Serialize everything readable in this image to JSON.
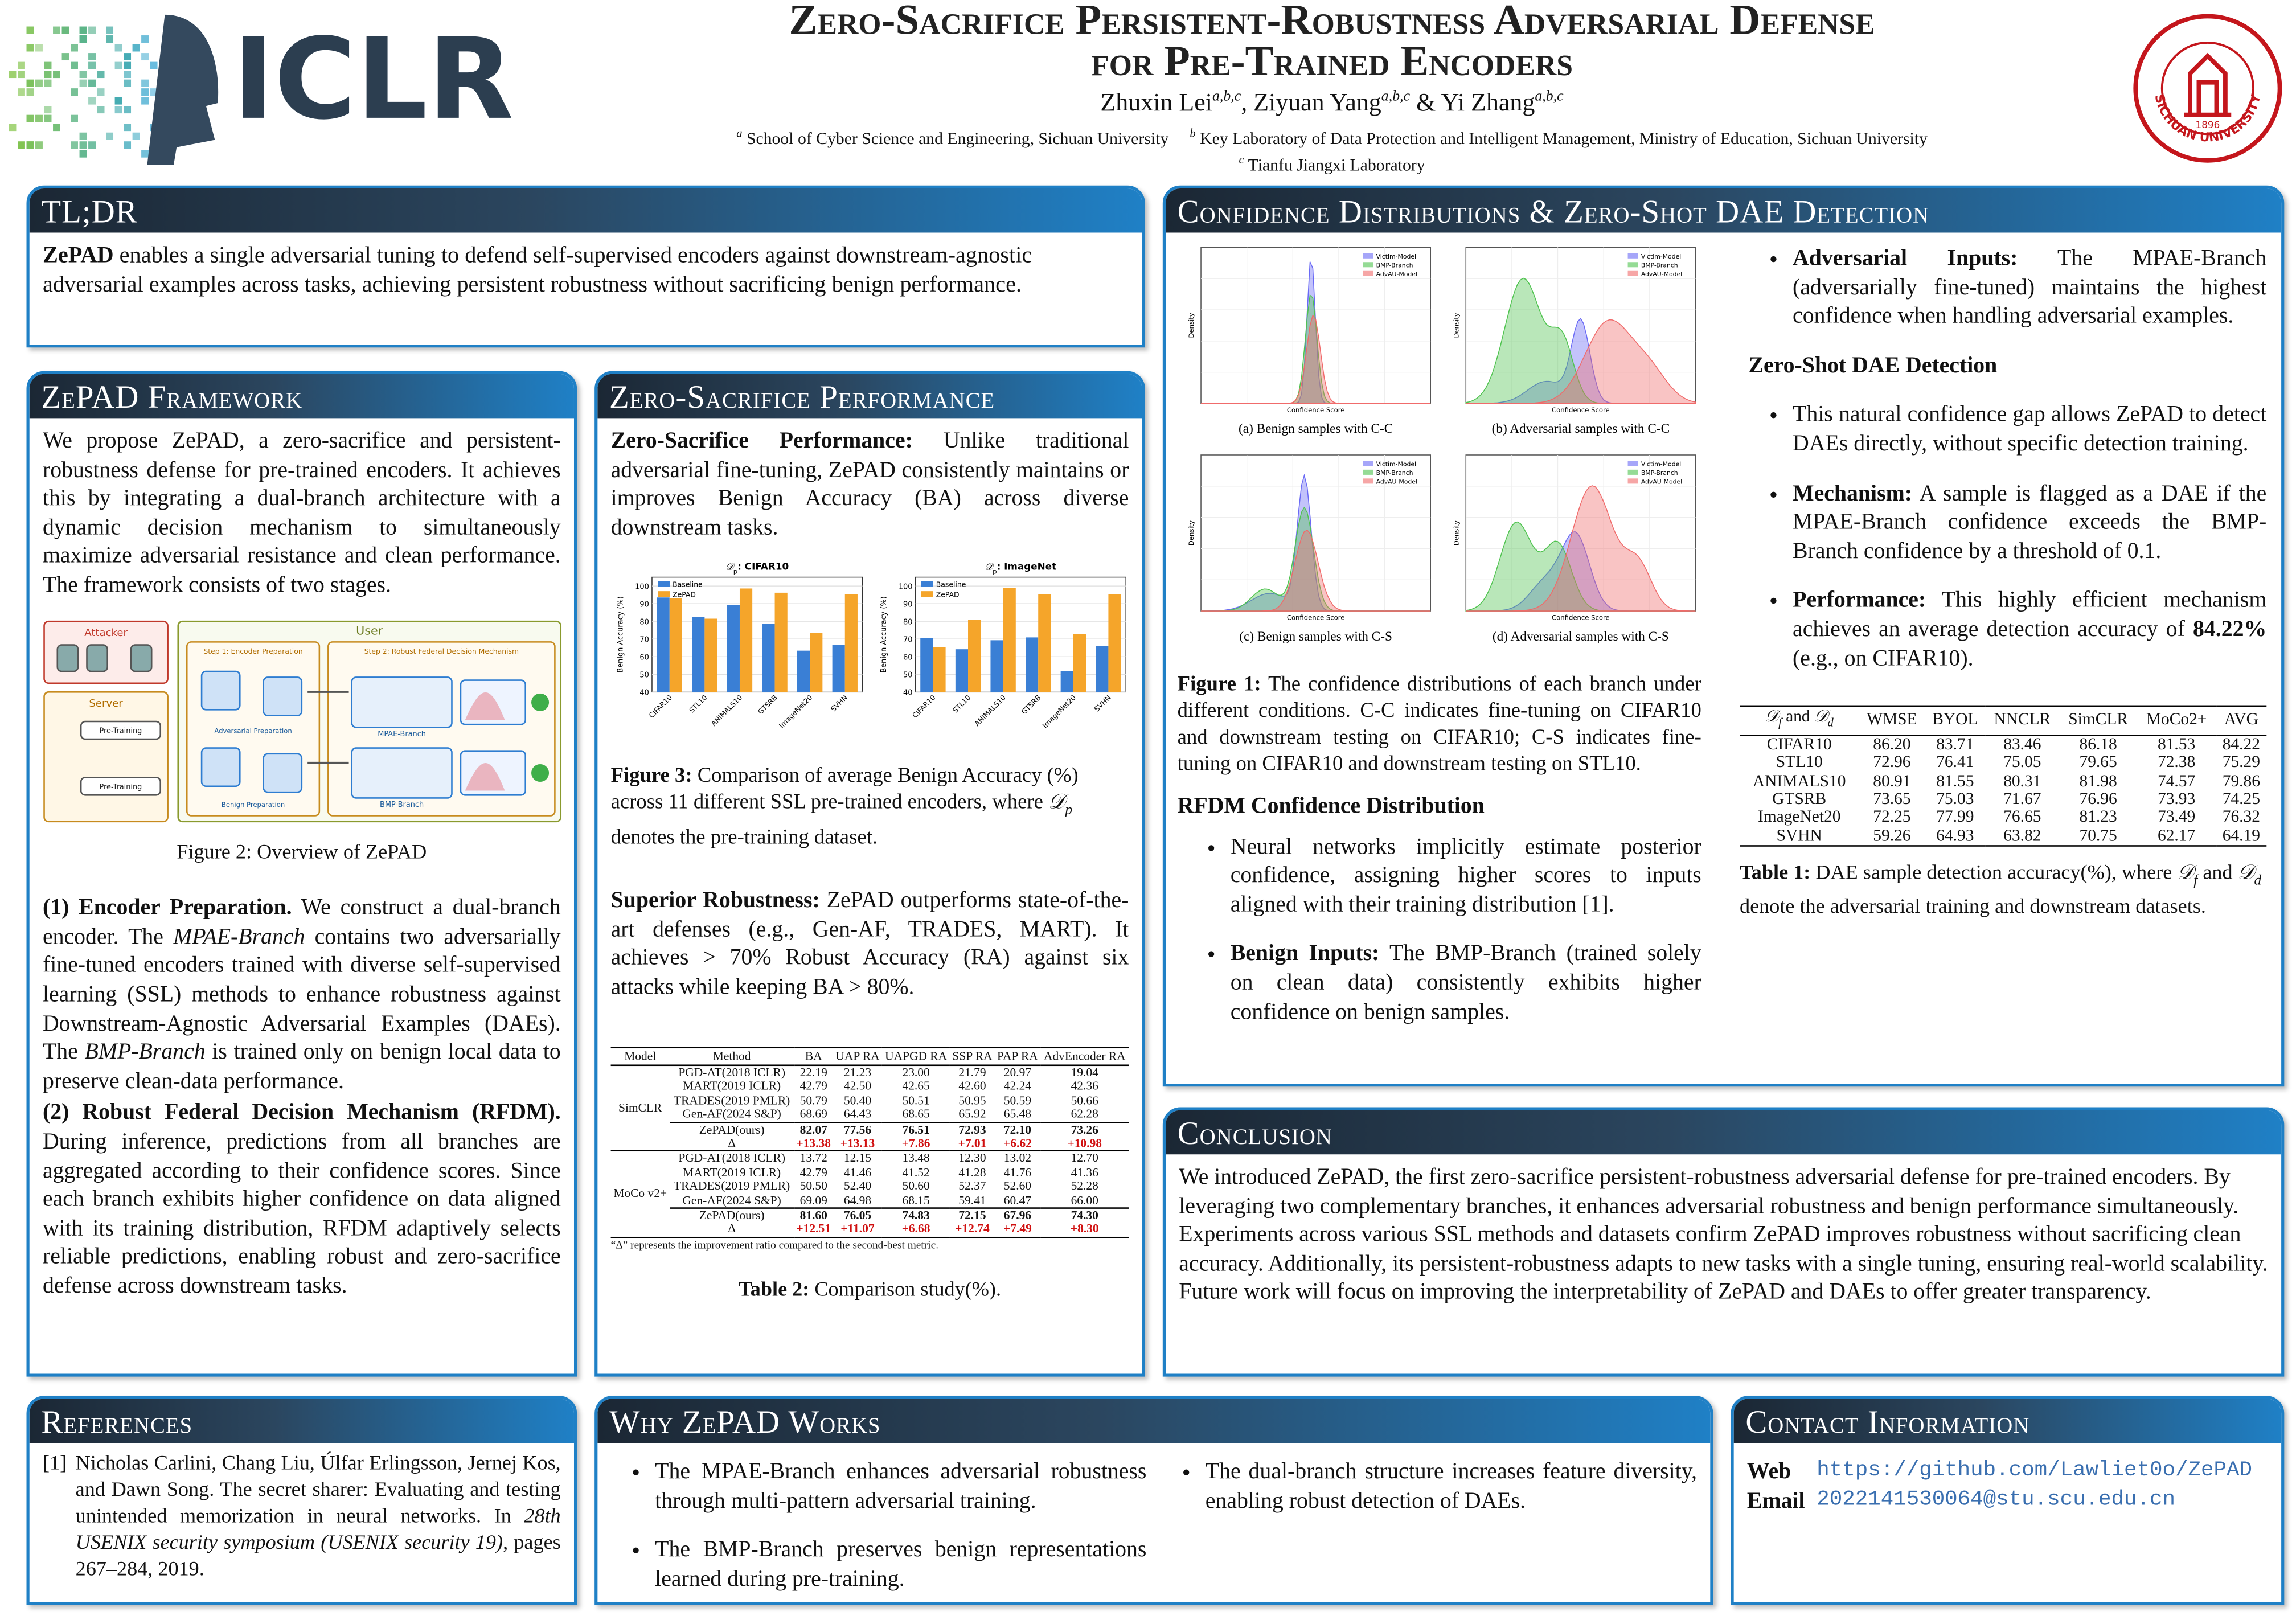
{
  "header": {
    "logo": "ICLR",
    "title": [
      "Zero-Sacrifice Persistent-Robustness Adversarial Defense",
      "for Pre-Trained Encoders"
    ],
    "authors": [
      {
        "name": "Zhuxin Lei",
        "affil": "a,b,c"
      },
      {
        "name": "Ziyuan Yang",
        "affil": "a,b,c"
      },
      {
        "name": "Yi Zhang",
        "affil": "a,b,c"
      }
    ],
    "author_separators": [
      ", ",
      " & "
    ],
    "affiliations": [
      {
        "mark": "a",
        "text": "School of Cyber Science and Engineering, Sichuan University"
      },
      {
        "mark": "b",
        "text": "Key Laboratory of Data Protection and Intelligent Management, Ministry of Education, Sichuan University"
      },
      {
        "mark": "c",
        "text": "Tianfu Jiangxi Laboratory"
      }
    ],
    "seal": {
      "name": "SICHUAN UNIVERSITY",
      "year": "1896"
    }
  },
  "tldr": {
    "title": "TL;DR",
    "body": [
      {
        "text": "ZePAD",
        "style": "bold"
      },
      " enables a single adversarial tuning to defend self-supervised encoders against downstream-agnostic adversarial examples across tasks, achieving persistent robustness without sacrificing benign performance."
    ]
  },
  "framework": {
    "title": "ZePAD Framework",
    "intro": [
      "We propose ZePAD, a zero-sacrifice and persistent-robustness defense for pre-trained encoders. It achieves this by integrating a dual-branch architecture with a dynamic decision mechanism to simultaneously maximize adversarial resistance and clean performance. The framework consists of two stages."
    ],
    "figure_labels": [
      "Attacker",
      "User",
      "Server",
      "Step 1: Encoder Preparation",
      "Step 2: Robust Federal Decision Mechanism",
      "Adversarial Preparation",
      "Benign Preparation",
      "Pre-Training",
      "MPAE-Branch",
      "BMP-Branch"
    ],
    "caption": [
      "Figure 2: Overview of ZePAD"
    ],
    "stage1": [
      {
        "text": "(1) Encoder Preparation.",
        "style": "bold"
      },
      " We construct a dual-branch encoder. The ",
      {
        "text": "MPAE-Branch",
        "style": "italic"
      },
      " contains two adversarially fine-tuned encoders trained with diverse self-supervised learning (SSL) methods to enhance robustness against Downstream-Agnostic Adversarial Examples (DAEs). The ",
      {
        "text": "BMP-Branch",
        "style": "italic"
      },
      " is trained only on benign local data to preserve clean-data performance."
    ],
    "stage2": [
      {
        "text": "(2) Robust Federal Decision Mechanism (RFDM).",
        "style": "bold"
      },
      " During inference, predictions from all branches are aggregated according to their confidence scores. Since each branch exhibits higher confidence on data aligned with its training distribution, RFDM adaptively selects reliable predictions, enabling robust and zero-sacrifice defense across downstream tasks."
    ]
  },
  "performance": {
    "title": "Zero-Sacrifice Performance",
    "p1": [
      {
        "text": "Zero-Sacrifice Performance:",
        "style": "bold"
      },
      " Unlike traditional adversarial fine-tuning, ZePAD consistently maintains or improves Benign Accuracy (BA) across diverse downstream tasks."
    ],
    "charts": [
      {
        "type": "bar",
        "title": [
          {
            "text": "𝒟",
            "style": "italic"
          },
          {
            "text": "p",
            "style": "sub"
          },
          {
            "text": ": CIFAR10",
            "style": "bold"
          }
        ],
        "categories": [
          "CIFAR10",
          "STL10",
          "ANIMALS10",
          "GTSRB",
          "ImageNet20",
          "SVHN"
        ],
        "series": [
          {
            "name": "Baseline",
            "color": "#3a7fd5",
            "values": [
              93.5,
              82.6,
              89.3,
              78.5,
              63.4,
              66.8
            ]
          },
          {
            "name": "ZePAD",
            "color": "#f5a52a",
            "values": [
              93.0,
              81.5,
              98.6,
              96.2,
              73.4,
              95.4
            ]
          }
        ],
        "ylabel": "Benign Accuracy (%)",
        "ylim": [
          40,
          105
        ],
        "yticks": [
          40,
          50,
          60,
          70,
          80,
          90,
          100
        ],
        "legend": "upper-left"
      },
      {
        "type": "bar",
        "title": [
          {
            "text": "𝒟",
            "style": "italic"
          },
          {
            "text": "p",
            "style": "sub"
          },
          {
            "text": ": ImageNet",
            "style": "bold"
          }
        ],
        "categories": [
          "CIFAR10",
          "STL10",
          "ANIMALS10",
          "GTSRB",
          "ImageNet20",
          "SVHN"
        ],
        "series": [
          {
            "name": "Baseline",
            "color": "#3a7fd5",
            "values": [
              70.7,
              64.2,
              69.3,
              70.9,
              52.0,
              66.0
            ]
          },
          {
            "name": "ZePAD",
            "color": "#f5a52a",
            "values": [
              65.5,
              80.9,
              99.0,
              95.3,
              72.9,
              95.4
            ]
          }
        ],
        "ylabel": "Benign Accuracy (%)",
        "ylim": [
          40,
          105
        ],
        "yticks": [
          40,
          50,
          60,
          70,
          80,
          90,
          100
        ],
        "legend": "upper-left"
      }
    ],
    "fig3": [
      {
        "text": "Figure 3:",
        "style": "bold"
      },
      " Comparison of average Benign Accuracy (%) across 11 different SSL pre-trained encoders, where ",
      {
        "text": "𝒟",
        "style": "italic"
      },
      {
        "text": "p",
        "style": "sub"
      },
      " denotes the pre-training dataset."
    ],
    "p2": [
      {
        "text": "Superior Robustness:",
        "style": "bold"
      },
      " ZePAD outperforms state-of-the-art defenses (e.g., Gen-AF, TRADES, MART). It achieves > 70% Robust Accuracy (RA) against six attacks while keeping BA > 80%."
    ],
    "table2": {
      "header": [
        "Model",
        "Method",
        "BA",
        "UAP RA",
        "UAPGD RA",
        "SSP RA",
        "PAP RA",
        "AdvEncoder RA"
      ],
      "groups": [
        {
          "model": "SimCLR",
          "rows": [
            [
              "PGD-AT(2018 ICLR)",
              "22.19",
              "21.23",
              "23.00",
              "21.79",
              "20.97",
              "19.04"
            ],
            [
              "MART(2019 ICLR)",
              "42.79",
              "42.50",
              "42.65",
              "42.60",
              "42.24",
              "42.36"
            ],
            [
              "TRADES(2019 PMLR)",
              "50.79",
              "50.40",
              "50.51",
              "50.95",
              "50.59",
              "50.66"
            ],
            [
              "Gen-AF(2024 S&P)",
              "68.69",
              "64.43",
              "68.65",
              "65.92",
              "65.48",
              "62.28"
            ],
            [
              "ZePAD(ours)",
              "82.07",
              "77.56",
              "76.51",
              "72.93",
              "72.10",
              "73.26"
            ],
            [
              "Δ",
              "+13.38",
              "+13.13",
              "+7.86",
              "+7.01",
              "+6.62",
              "+10.98"
            ]
          ]
        },
        {
          "model": "MoCo v2+",
          "rows": [
            [
              "PGD-AT(2018 ICLR)",
              "13.72",
              "12.15",
              "13.48",
              "12.30",
              "13.02",
              "12.70"
            ],
            [
              "MART(2019 ICLR)",
              "42.79",
              "41.46",
              "41.52",
              "41.28",
              "41.76",
              "41.36"
            ],
            [
              "TRADES(2019 PMLR)",
              "50.50",
              "52.40",
              "50.60",
              "52.37",
              "52.60",
              "52.28"
            ],
            [
              "Gen-AF(2024 S&P)",
              "69.09",
              "64.98",
              "68.15",
              "59.41",
              "60.47",
              "66.00"
            ],
            [
              "ZePAD(ours)",
              "81.60",
              "76.05",
              "74.83",
              "72.15",
              "67.96",
              "74.30"
            ],
            [
              "Δ",
              "+12.51",
              "+11.07",
              "+6.68",
              "+12.74",
              "+7.49",
              "+8.30"
            ]
          ]
        }
      ],
      "note": "“Δ” represents the improvement ratio compared to the second-best metric.",
      "caption": [
        {
          "text": "Table 2:",
          "style": "bold"
        },
        " Comparison study(%)."
      ]
    }
  },
  "confidence": {
    "title": "Confidence Distributions & Zero-Shot DAE Detection",
    "legend": [
      "Victim-Model",
      "BMP-Branch",
      "AdvAU-Model"
    ],
    "xlabel": "Confidence Score",
    "ylabel": "Density",
    "plots": [
      "(a) Benign samples with C-C",
      "(b) Adversarial samples with C-C",
      "(c) Benign samples with C-S",
      "(d) Adversarial samples with C-S"
    ],
    "fig1": [
      {
        "text": "Figure 1:",
        "style": "bold"
      },
      " The confidence distributions of each branch under different conditions. C-C indicates fine-tuning on CIFAR10 and downstream testing on CIFAR10; C-S indicates fine-tuning on CIFAR10 and downstream testing on STL10."
    ],
    "rfdm_heading": "RFDM Confidence Distribution",
    "rfdm_bullets": [
      [
        "Neural networks implicitly estimate posterior confidence, assigning higher scores to inputs aligned with their training distribution [1]."
      ],
      [
        {
          "text": "Benign Inputs:",
          "style": "bold"
        },
        " The BMP-Branch (trained solely on clean data) consistently exhibits higher confidence on benign samples."
      ]
    ],
    "right_bullets": [
      [
        {
          "text": "Adversarial Inputs:",
          "style": "bold"
        },
        " The MPAE-Branch (adversarially fine-tuned) maintains the highest confidence when handling adversarial examples."
      ]
    ],
    "zs_heading": "Zero-Shot DAE Detection",
    "zs_bullets": [
      [
        "This natural confidence gap allows ZePAD to detect DAEs directly, without specific detection training."
      ],
      [
        {
          "text": "Mechanism:",
          "style": "bold"
        },
        " A sample is flagged as a DAE if the MPAE-Branch confidence exceeds the BMP-Branch confidence by a threshold of 0.1."
      ],
      [
        {
          "text": "Performance:",
          "style": "bold"
        },
        " This highly efficient mechanism achieves an average detection accuracy of ",
        {
          "text": "84.22%",
          "style": "bold"
        },
        " (e.g., on CIFAR10)."
      ]
    ],
    "table1": {
      "corner": [
        {
          "text": "𝒟",
          "style": "italic"
        },
        {
          "text": "f",
          "style": "sub"
        },
        " and ",
        {
          "text": "𝒟",
          "style": "italic"
        },
        {
          "text": "d",
          "style": "sub"
        }
      ],
      "header": [
        "WMSE",
        "BYOL",
        "NNCLR",
        "SimCLR",
        "MoCo2+",
        "AVG"
      ],
      "rows": [
        [
          "CIFAR10",
          "86.20",
          "83.71",
          "83.46",
          "86.18",
          "81.53",
          "84.22"
        ],
        [
          "STL10",
          "72.96",
          "76.41",
          "75.05",
          "79.65",
          "72.38",
          "75.29"
        ],
        [
          "ANIMALS10",
          "80.91",
          "81.55",
          "80.31",
          "81.98",
          "74.57",
          "79.86"
        ],
        [
          "GTSRB",
          "73.65",
          "75.03",
          "71.67",
          "76.96",
          "73.93",
          "74.25"
        ],
        [
          "ImageNet20",
          "72.25",
          "77.99",
          "76.65",
          "81.23",
          "73.49",
          "76.32"
        ],
        [
          "SVHN",
          "59.26",
          "64.93",
          "63.82",
          "70.75",
          "62.17",
          "64.19"
        ]
      ],
      "caption": [
        {
          "text": "Table 1:",
          "style": "bold"
        },
        " DAE sample detection accuracy(%), where ",
        {
          "text": "𝒟",
          "style": "italic"
        },
        {
          "text": "f",
          "style": "sub"
        },
        " and ",
        {
          "text": "𝒟",
          "style": "italic"
        },
        {
          "text": "d",
          "style": "sub"
        },
        " denote the adversarial training and downstream datasets."
      ]
    }
  },
  "conclusion": {
    "title": "Conclusion",
    "body": [
      "We introduced ZePAD, the first zero-sacrifice persistent-robustness adversarial defense for pre-trained encoders. By leveraging two complementary branches, it enhances adversarial robustness and benign performance simultaneously. Experiments across various SSL methods and datasets confirm ZePAD improves robustness without sacrificing clean accuracy. Additionally, its persistent-robustness adapts to new tasks with a single tuning, ensuring real-world scalability. Future work will focus on improving the interpretability of ZePAD and DAEs to offer greater transparency."
    ]
  },
  "references": {
    "title": "References",
    "items": [
      {
        "label": "[1]",
        "text": [
          "Nicholas Carlini, Chang Liu, Úlfar Erlingsson, Jernej Kos, and Dawn Song. The secret sharer: Evaluating and testing unintended memorization in neural networks. In ",
          {
            "text": "28th USENIX security symposium (USENIX security 19)",
            "style": "italic"
          },
          ", pages 267–284, 2019."
        ]
      }
    ]
  },
  "why": {
    "title": "Why ZePAD Works",
    "bullets": [
      [
        "The MPAE-Branch enhances adversarial robustness through multi-pattern adversarial training."
      ],
      [
        "The BMP-Branch preserves benign representations learned during pre-training."
      ],
      [
        "The dual-branch structure increases feature diversity, enabling robust detection of DAEs."
      ]
    ]
  },
  "contact": {
    "title": "Contact Information",
    "items": [
      {
        "label": "Web",
        "value": "https://github.com/Lawliet0o/ZePAD"
      },
      {
        "label": "Email",
        "value": "2022141530064@stu.scu.edu.cn"
      }
    ]
  }
}
